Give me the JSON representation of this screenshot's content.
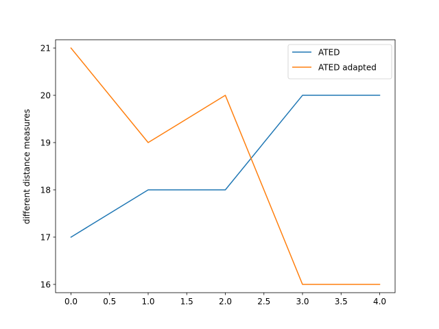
{
  "chart_data": {
    "type": "line",
    "title": "",
    "xlabel": "",
    "ylabel": "different distance measures",
    "x": [
      0,
      1,
      2,
      3,
      4
    ],
    "xlim": [
      -0.2,
      4.2
    ],
    "ylim": [
      15.825,
      21.175
    ],
    "xticks": [
      0.0,
      0.5,
      1.0,
      1.5,
      2.0,
      2.5,
      3.0,
      3.5,
      4.0
    ],
    "xtick_labels": [
      "0.0",
      "0.5",
      "1.0",
      "1.5",
      "2.0",
      "2.5",
      "3.0",
      "3.5",
      "4.0"
    ],
    "yticks": [
      16,
      17,
      18,
      19,
      20,
      21
    ],
    "ytick_labels": [
      "16",
      "17",
      "18",
      "19",
      "20",
      "21"
    ],
    "grid": false,
    "legend_position": "top-right",
    "series": [
      {
        "name": "ATED",
        "color": "#1f77b4",
        "values": [
          17,
          18,
          18,
          20,
          20
        ]
      },
      {
        "name": "ATED adapted",
        "color": "#ff7f0e",
        "values": [
          21,
          19,
          20,
          16,
          16
        ]
      }
    ]
  }
}
